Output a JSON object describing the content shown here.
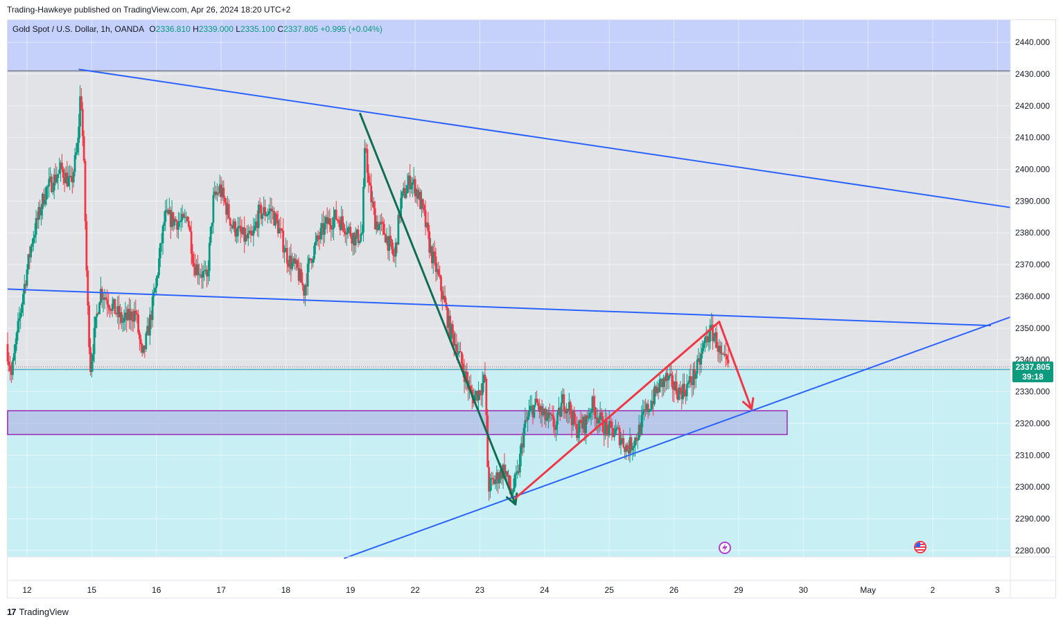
{
  "header": {
    "published": "Trading-Hawkeye published on TradingView.com, Apr 26, 2024 18:20 UTC+2"
  },
  "legend": {
    "symbol": "Gold Spot / U.S. Dollar, 1h, OANDA",
    "o_label": "O",
    "o_value": "2336.810",
    "h_label": "H",
    "h_value": "2339.000",
    "l_label": "L",
    "l_value": "2335.100",
    "c_label": "C",
    "c_value": "2337.805",
    "change": "+0.995 (+0.04%)"
  },
  "last_price": {
    "value": "2337.805",
    "countdown": "39:18"
  },
  "footer": {
    "brand": "TradingView",
    "logo_glyph": "17"
  },
  "icons": {
    "event_icon": "lightning-event-icon",
    "flag_icon": "us-flag-icon"
  },
  "colors": {
    "up": "#089981",
    "down": "#f23645",
    "trendline": "#2962ff",
    "resistance_zone": "#c5d0fb",
    "support_zone": "#c8eff4",
    "demand_box": "#a9a7e0",
    "green_arrow": "#0f6e52",
    "red_arrow": "#f23645",
    "level_line": "#3bb0c9"
  },
  "chart_data": {
    "type": "candlestick",
    "title": "Gold Spot / U.S. Dollar, 1h, OANDA",
    "ylim": [
      2278,
      2447
    ],
    "y_ticks": [
      2280,
      2290,
      2300,
      2310,
      2320,
      2330,
      2340,
      2350,
      2360,
      2370,
      2380,
      2390,
      2400,
      2410,
      2420,
      2430,
      2440
    ],
    "y_tick_labels": [
      "2280.000",
      "2290.000",
      "2300.000",
      "2310.000",
      "2320.000",
      "2330.000",
      "2340.000",
      "2350.000",
      "2360.000",
      "2370.000",
      "2380.000",
      "2390.000",
      "2400.000",
      "2410.000",
      "2420.000",
      "2430.000",
      "2440.000"
    ],
    "x_range": [
      0,
      15.5
    ],
    "x_ticks": [
      {
        "x": 0.3,
        "label": "12"
      },
      {
        "x": 1.3,
        "label": "15"
      },
      {
        "x": 2.3,
        "label": "16"
      },
      {
        "x": 3.3,
        "label": "17"
      },
      {
        "x": 4.3,
        "label": "18"
      },
      {
        "x": 5.3,
        "label": "19"
      },
      {
        "x": 6.3,
        "label": "22"
      },
      {
        "x": 7.3,
        "label": "23"
      },
      {
        "x": 8.3,
        "label": "24"
      },
      {
        "x": 9.3,
        "label": "25"
      },
      {
        "x": 10.3,
        "label": "26"
      },
      {
        "x": 11.3,
        "label": "29"
      },
      {
        "x": 12.3,
        "label": "30"
      },
      {
        "x": 13.3,
        "label": "May"
      },
      {
        "x": 14.3,
        "label": "2"
      },
      {
        "x": 15.3,
        "label": "3"
      }
    ],
    "anchors": [
      [
        0.0,
        2345
      ],
      [
        0.08,
        2335
      ],
      [
        0.25,
        2360
      ],
      [
        0.4,
        2378
      ],
      [
        0.6,
        2393
      ],
      [
        0.85,
        2400
      ],
      [
        1.0,
        2395
      ],
      [
        1.1,
        2407
      ],
      [
        1.15,
        2426
      ],
      [
        1.2,
        2400
      ],
      [
        1.25,
        2360
      ],
      [
        1.3,
        2338
      ],
      [
        1.45,
        2362
      ],
      [
        1.6,
        2358
      ],
      [
        1.8,
        2352
      ],
      [
        2.0,
        2355
      ],
      [
        2.1,
        2340
      ],
      [
        2.2,
        2350
      ],
      [
        2.3,
        2362
      ],
      [
        2.45,
        2385
      ],
      [
        2.6,
        2384
      ],
      [
        2.75,
        2383
      ],
      [
        2.8,
        2386
      ],
      [
        2.9,
        2370
      ],
      [
        3.0,
        2368
      ],
      [
        3.1,
        2365
      ],
      [
        3.2,
        2390
      ],
      [
        3.3,
        2394
      ],
      [
        3.5,
        2382
      ],
      [
        3.7,
        2378
      ],
      [
        3.8,
        2378
      ],
      [
        3.9,
        2386
      ],
      [
        4.1,
        2387
      ],
      [
        4.2,
        2382
      ],
      [
        4.35,
        2372
      ],
      [
        4.5,
        2368
      ],
      [
        4.6,
        2362
      ],
      [
        4.7,
        2372
      ],
      [
        4.8,
        2377
      ],
      [
        4.95,
        2383
      ],
      [
        5.1,
        2385
      ],
      [
        5.25,
        2382
      ],
      [
        5.4,
        2378
      ],
      [
        5.5,
        2380
      ],
      [
        5.55,
        2410
      ],
      [
        5.6,
        2395
      ],
      [
        5.7,
        2384
      ],
      [
        5.85,
        2380
      ],
      [
        6.0,
        2372
      ],
      [
        6.1,
        2390
      ],
      [
        6.25,
        2397
      ],
      [
        6.35,
        2393
      ],
      [
        6.45,
        2386
      ],
      [
        6.55,
        2375
      ],
      [
        6.65,
        2368
      ],
      [
        6.75,
        2360
      ],
      [
        6.85,
        2350
      ],
      [
        6.95,
        2345
      ],
      [
        7.05,
        2338
      ],
      [
        7.2,
        2328
      ],
      [
        7.3,
        2330
      ],
      [
        7.4,
        2334
      ],
      [
        7.45,
        2300
      ],
      [
        7.55,
        2302
      ],
      [
        7.7,
        2306
      ],
      [
        7.8,
        2298
      ],
      [
        7.9,
        2303
      ],
      [
        8.0,
        2318
      ],
      [
        8.1,
        2324
      ],
      [
        8.2,
        2326
      ],
      [
        8.3,
        2322
      ],
      [
        8.4,
        2321
      ],
      [
        8.5,
        2319
      ],
      [
        8.6,
        2327
      ],
      [
        8.7,
        2325
      ],
      [
        8.8,
        2318
      ],
      [
        8.95,
        2320
      ],
      [
        9.05,
        2326
      ],
      [
        9.2,
        2320
      ],
      [
        9.3,
        2318
      ],
      [
        9.45,
        2317
      ],
      [
        9.6,
        2312
      ],
      [
        9.75,
        2316
      ],
      [
        9.85,
        2322
      ],
      [
        10.0,
        2328
      ],
      [
        10.1,
        2332
      ],
      [
        10.2,
        2334
      ],
      [
        10.3,
        2332
      ],
      [
        10.4,
        2330
      ],
      [
        10.5,
        2331
      ],
      [
        10.6,
        2334
      ],
      [
        10.7,
        2338
      ],
      [
        10.8,
        2346
      ],
      [
        10.9,
        2349
      ],
      [
        10.98,
        2346
      ],
      [
        11.05,
        2340
      ],
      [
        11.15,
        2338
      ]
    ],
    "resistance_zone": [
      2430.8,
      2447
    ],
    "support_zone": [
      2278,
      2336.5
    ],
    "demand_box": {
      "x": [
        0,
        12.05
      ],
      "y": [
        2316.5,
        2324
      ]
    },
    "horizontal_line": 2431,
    "level_line": 2337.0,
    "last_price": 2337.805,
    "trendlines": [
      {
        "from": [
          1.1,
          2431.5
        ],
        "to": [
          15.5,
          2388
        ]
      },
      {
        "from": [
          0.0,
          2362.3
        ],
        "to": [
          15.2,
          2350.8
        ]
      },
      {
        "from": [
          5.2,
          2277.5
        ],
        "to": [
          15.5,
          2353.5
        ]
      }
    ],
    "green_arrow": {
      "from": [
        5.45,
        2417.5
      ],
      "to": [
        7.85,
        2294.5
      ]
    },
    "red_up_arrow": {
      "from": [
        7.85,
        2296.5
      ],
      "to": [
        11.0,
        2352
      ]
    },
    "red_down_arrow": {
      "from": [
        11.0,
        2352
      ],
      "to": [
        11.5,
        2324.5
      ]
    }
  }
}
